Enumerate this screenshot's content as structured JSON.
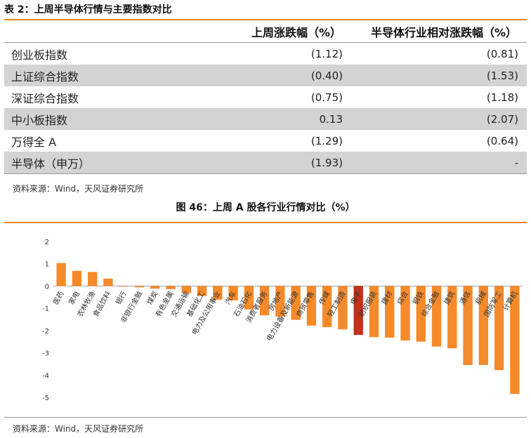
{
  "table": {
    "title": "表 2：上周半导体行情与主要指数对比",
    "headers": [
      "",
      "上周涨跌幅（%）",
      "半导体行业相对涨跌幅（%）"
    ],
    "rows": [
      {
        "name": "创业板指数",
        "weekly": "(1.12)",
        "relative": "(0.81)"
      },
      {
        "name": "上证综合指数",
        "weekly": "(0.40)",
        "relative": "(1.53)"
      },
      {
        "name": "深证综合指数",
        "weekly": "(0.75)",
        "relative": "(1.18)"
      },
      {
        "name": "中小板指数",
        "weekly": "0.13",
        "relative": "(2.07)"
      },
      {
        "name": "万得全 A",
        "weekly": "(1.29)",
        "relative": "(0.64)"
      },
      {
        "name": "半导体（申万）",
        "weekly": "(1.93)",
        "relative": "-"
      }
    ],
    "source": "资料来源：Wind，天风证券研究所"
  },
  "chart_title": "图 46：上周 A 股各行业行情对比（%）",
  "chart_data": {
    "type": "bar",
    "categories": [
      "医药",
      "家电",
      "农林牧渔",
      "食品饮料",
      "银行",
      "非银行金融",
      "煤炭",
      "有色金属",
      "交通运输",
      "基础化工",
      "电力及公用事业",
      "汽车",
      "石油石化",
      "消费者服务",
      "房地产",
      "电力设备及新能源",
      "商贸零售",
      "传媒",
      "轻工制造",
      "电子",
      "纺织服装",
      "建材",
      "综合",
      "钢铁",
      "综合金融",
      "建筑",
      "通信",
      "机械",
      "国防军工",
      "计算机"
    ],
    "values": [
      1.03,
      0.68,
      0.63,
      0.33,
      0.0,
      -0.06,
      -0.12,
      -0.14,
      -0.32,
      -0.45,
      -0.62,
      -0.65,
      -1.05,
      -1.32,
      -1.38,
      -1.52,
      -1.78,
      -1.85,
      -1.95,
      -2.2,
      -2.3,
      -2.32,
      -2.45,
      -2.5,
      -2.72,
      -2.8,
      -3.55,
      -3.55,
      -3.78,
      -4.85
    ],
    "highlight_index": 19,
    "ylim": [
      -5,
      2
    ],
    "yticks": [
      2,
      1,
      0,
      -1,
      -2,
      -3,
      -4,
      -5
    ],
    "bar_color": "#f58a2b",
    "highlight_color": "#c0321a",
    "grid": false,
    "title": "",
    "xlabel": "",
    "ylabel": ""
  },
  "source": "资料来源：Wind，天风证券研究所"
}
